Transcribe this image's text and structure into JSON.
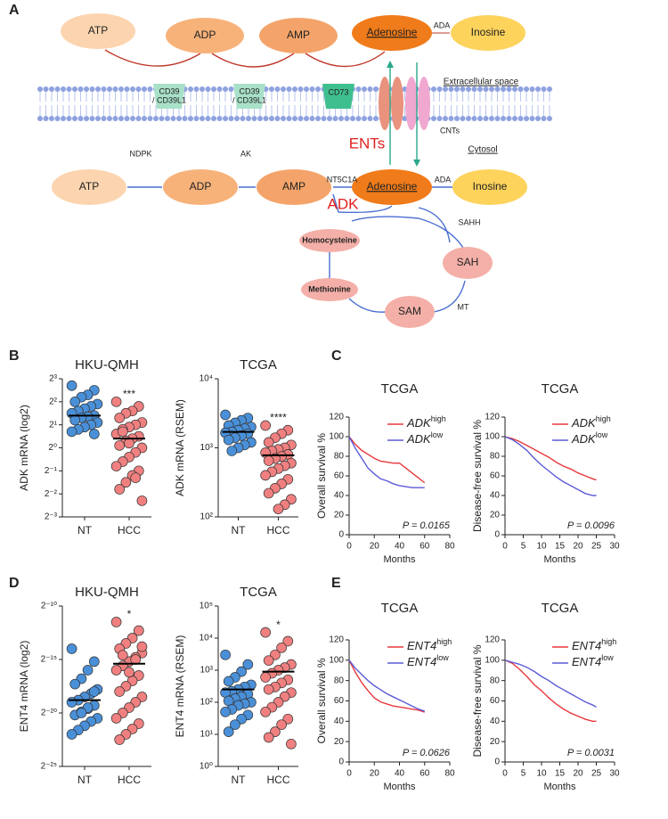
{
  "panels": [
    "A",
    "B",
    "C",
    "D",
    "E"
  ],
  "diagram": {
    "top_nodes": [
      "ATP",
      "ADP",
      "AMP",
      "Adenosine",
      "Inosine"
    ],
    "top_enzyme": "ADA",
    "membrane_proteins": [
      [
        "CD39",
        "/ CD39L1"
      ],
      [
        "CD39",
        "/ CD39L1"
      ],
      [
        "CD73"
      ]
    ],
    "transporters": [
      "ENTs",
      "CNTs"
    ],
    "compartments": [
      "Extracellular space",
      "Cytosol"
    ],
    "bottom_nodes": [
      "ATP",
      "ADP",
      "AMP",
      "Adenosine",
      "Inosine"
    ],
    "bottom_enzymes": [
      "NDPK",
      "AK",
      "NT5C1A",
      "ADA"
    ],
    "kinase": "ADK",
    "cycle_nodes": [
      "Homocysteine",
      "Methionine",
      "SAM",
      "SAH"
    ],
    "cycle_enzymes": [
      "SAHH",
      "MT"
    ]
  },
  "chart_data": [
    {
      "type": "dot",
      "title": "HKU-QMH",
      "ylabel": "ADK mRNA (log2)",
      "categories": [
        "NT",
        "HCC"
      ],
      "colors": [
        "#4a90d9",
        "#f08080"
      ],
      "values": [
        [
          2.7,
          2.5,
          2.3,
          2.2,
          2.0,
          1.9,
          1.8,
          1.7,
          1.6,
          1.5,
          1.4,
          1.35,
          1.3,
          1.2,
          1.1,
          1.0,
          0.9,
          0.8,
          0.7,
          0.6
        ],
        [
          2.0,
          1.8,
          1.6,
          1.5,
          1.3,
          1.1,
          1.0,
          0.9,
          0.8,
          0.6,
          0.5,
          0.4,
          0.3,
          0.1,
          0,
          -0.2,
          -0.4,
          -0.6,
          -0.8,
          -1.0,
          -1.2,
          -1.5,
          -1.8,
          -2.3,
          -1.3,
          0.2,
          0.7
        ]
      ],
      "means": [
        1.4,
        0.4
      ],
      "annotation": "***",
      "ylim": [
        -3,
        3
      ],
      "yticks": [
        {
          "value": -3,
          "label": "2⁻³"
        },
        {
          "value": -2,
          "label": "2⁻²"
        },
        {
          "value": -1,
          "label": "2⁻¹"
        },
        {
          "value": 0,
          "label": "2⁰"
        },
        {
          "value": 1,
          "label": "2¹"
        },
        {
          "value": 2,
          "label": "2²"
        },
        {
          "value": 3,
          "label": "2³"
        }
      ]
    },
    {
      "type": "dot",
      "title": "TCGA",
      "ylabel": "ADK mRNA (RSEM)",
      "categories": [
        "NT",
        "HCC"
      ],
      "colors": [
        "#4a90d9",
        "#f08080"
      ],
      "yscale": "log",
      "values": [
        [
          3000,
          2700,
          2500,
          2300,
          2100,
          2000,
          1900,
          1800,
          1700,
          1650,
          1600,
          1500,
          1400,
          1300,
          1200,
          1100,
          1000,
          900
        ],
        [
          2100,
          1800,
          1600,
          1400,
          1200,
          1100,
          1000,
          950,
          900,
          850,
          800,
          750,
          700,
          650,
          600,
          550,
          500,
          450,
          400,
          350,
          300,
          260,
          220,
          180,
          150,
          130
        ]
      ],
      "means": [
        1700,
        780
      ],
      "annotation": "****",
      "ylim": [
        100,
        10000
      ],
      "yticks": [
        {
          "value": 100,
          "label": "10²"
        },
        {
          "value": 1000,
          "label": "10³"
        },
        {
          "value": 10000,
          "label": "10⁴"
        }
      ]
    },
    {
      "type": "line",
      "title": "TCGA",
      "ylabel": "Overall survival %",
      "xlabel": "Months",
      "annotation": "P = 0.0165",
      "xlim": [
        0,
        80
      ],
      "xticks": [
        0,
        20,
        40,
        60,
        80
      ],
      "ylim": [
        0,
        120
      ],
      "yticks": [
        0,
        20,
        40,
        60,
        80,
        100,
        120
      ],
      "series": [
        {
          "name": "ADK",
          "sup": "high",
          "color": "#e8383d",
          "x": [
            0,
            5,
            10,
            15,
            20,
            25,
            30,
            35,
            40,
            45,
            50,
            55,
            58,
            60
          ],
          "values": [
            100,
            92,
            86,
            82,
            78,
            75,
            74,
            73,
            73,
            68,
            63,
            58,
            55,
            53
          ]
        },
        {
          "name": "ADK",
          "sup": "low",
          "color": "#5b5bd6",
          "x": [
            0,
            5,
            10,
            15,
            20,
            25,
            30,
            35,
            40,
            45,
            50,
            55,
            60
          ],
          "values": [
            100,
            88,
            78,
            68,
            62,
            57,
            55,
            52,
            50,
            49,
            48,
            48,
            48
          ]
        }
      ]
    },
    {
      "type": "line",
      "title": "TCGA",
      "ylabel": "Disease-free survival %",
      "xlabel": "Months",
      "annotation": "P = 0.0096",
      "xlim": [
        0,
        30
      ],
      "xticks": [
        0,
        5,
        10,
        15,
        20,
        25,
        30
      ],
      "ylim": [
        0,
        120
      ],
      "yticks": [
        0,
        20,
        40,
        60,
        80,
        100,
        120
      ],
      "series": [
        {
          "name": "ADK",
          "sup": "high",
          "color": "#e8383d",
          "x": [
            0,
            2,
            4,
            6,
            8,
            10,
            12,
            14,
            16,
            18,
            20,
            22,
            24,
            25
          ],
          "values": [
            100,
            98,
            95,
            91,
            87,
            83,
            79,
            74,
            70,
            67,
            63,
            60,
            57,
            56
          ]
        },
        {
          "name": "ADK",
          "sup": "low",
          "color": "#5b5bd6",
          "x": [
            0,
            2,
            4,
            6,
            8,
            10,
            12,
            14,
            16,
            18,
            20,
            22,
            24,
            25
          ],
          "values": [
            100,
            97,
            92,
            86,
            78,
            71,
            65,
            59,
            54,
            50,
            46,
            42,
            40,
            40
          ]
        }
      ]
    },
    {
      "type": "dot",
      "title": "HKU-QMH",
      "ylabel": "ENT4 mRNA (log2)",
      "categories": [
        "NT",
        "HCC"
      ],
      "colors": [
        "#4a90d9",
        "#f08080"
      ],
      "values": [
        [
          -14,
          -15.2,
          -16,
          -16.8,
          -17.3,
          -17.8,
          -18.2,
          -18.5,
          -18.8,
          -19,
          -19.3,
          -19.6,
          -19.9,
          -20.2,
          -20.5,
          -20.8,
          -21.2,
          -21.6,
          -22,
          -18,
          -19.5,
          -20
        ],
        [
          -11.5,
          -12.3,
          -13,
          -13.5,
          -14,
          -14.4,
          -14.8,
          -15.2,
          -15.6,
          -16,
          -16.5,
          -17,
          -17.5,
          -18,
          -18.5,
          -19,
          -19.5,
          -20,
          -20.5,
          -21,
          -21.5,
          -22,
          -22.5,
          -13.8,
          -15,
          -16.2,
          -14.6
        ]
      ],
      "means": [
        -18.8,
        -15.4
      ],
      "annotation": "*",
      "ylim": [
        -25,
        -10
      ],
      "yticks": [
        {
          "value": -10,
          "label": "2⁻¹⁰"
        },
        {
          "value": -15,
          "label": "2⁻¹⁵"
        },
        {
          "value": -20,
          "label": "2⁻²⁰"
        },
        {
          "value": -25,
          "label": "2⁻²⁵"
        }
      ]
    },
    {
      "type": "dot",
      "title": "TCGA",
      "ylabel": "ENT4 mRNA (RSEM)",
      "categories": [
        "NT",
        "HCC"
      ],
      "colors": [
        "#4a90d9",
        "#f08080"
      ],
      "yscale": "log",
      "values": [
        [
          3000,
          1500,
          900,
          600,
          450,
          350,
          300,
          250,
          220,
          200,
          180,
          150,
          130,
          110,
          100,
          90,
          80,
          60,
          50,
          40,
          30,
          20,
          12
        ],
        [
          15000,
          8000,
          5000,
          3000,
          2000,
          1500,
          1200,
          1000,
          800,
          600,
          500,
          400,
          300,
          250,
          200,
          150,
          100,
          70,
          50,
          30,
          20,
          12,
          8,
          5
        ]
      ],
      "means": [
        250,
        900
      ],
      "annotation": "*",
      "ylim": [
        1,
        100000
      ],
      "yticks": [
        {
          "value": 1,
          "label": "10⁰"
        },
        {
          "value": 10,
          "label": "10¹"
        },
        {
          "value": 100,
          "label": "10²"
        },
        {
          "value": 1000,
          "label": "10³"
        },
        {
          "value": 10000,
          "label": "10⁴"
        },
        {
          "value": 100000,
          "label": "10⁵"
        }
      ]
    },
    {
      "type": "line",
      "title": "TCGA",
      "ylabel": "Overall survival %",
      "xlabel": "Months",
      "annotation": "P = 0.0626",
      "xlim": [
        0,
        80
      ],
      "xticks": [
        0,
        20,
        40,
        60,
        80
      ],
      "ylim": [
        0,
        120
      ],
      "yticks": [
        0,
        20,
        40,
        60,
        80,
        100,
        120
      ],
      "series": [
        {
          "name": "ENT4",
          "sup": "high",
          "color": "#e8383d",
          "x": [
            0,
            5,
            10,
            15,
            20,
            25,
            30,
            35,
            40,
            45,
            50,
            55,
            60
          ],
          "values": [
            100,
            88,
            78,
            70,
            63,
            59,
            57,
            55,
            54,
            53,
            52,
            51,
            49
          ]
        },
        {
          "name": "ENT4",
          "sup": "low",
          "color": "#5b5bd6",
          "x": [
            0,
            5,
            10,
            15,
            20,
            25,
            30,
            35,
            40,
            45,
            50,
            55,
            60
          ],
          "values": [
            100,
            92,
            86,
            80,
            75,
            71,
            67,
            64,
            61,
            58,
            55,
            52,
            50
          ]
        }
      ]
    },
    {
      "type": "line",
      "title": "TCGA",
      "ylabel": "Disease-free survival %",
      "xlabel": "Months",
      "annotation": "P = 0.0031",
      "xlim": [
        0,
        30
      ],
      "xticks": [
        0,
        5,
        10,
        15,
        20,
        25,
        30
      ],
      "ylim": [
        0,
        120
      ],
      "yticks": [
        0,
        20,
        40,
        60,
        80,
        100,
        120
      ],
      "series": [
        {
          "name": "ENT4",
          "sup": "high",
          "color": "#e8383d",
          "x": [
            0,
            2,
            4,
            6,
            8,
            10,
            12,
            14,
            16,
            18,
            20,
            22,
            24,
            25
          ],
          "values": [
            100,
            97,
            91,
            84,
            76,
            70,
            63,
            57,
            52,
            48,
            45,
            42,
            40,
            40
          ]
        },
        {
          "name": "ENT4",
          "sup": "low",
          "color": "#5b5bd6",
          "x": [
            0,
            2,
            4,
            6,
            8,
            10,
            12,
            14,
            16,
            18,
            20,
            22,
            24,
            25
          ],
          "values": [
            100,
            98,
            96,
            93,
            89,
            84,
            80,
            75,
            71,
            67,
            63,
            59,
            56,
            54
          ]
        }
      ]
    }
  ]
}
